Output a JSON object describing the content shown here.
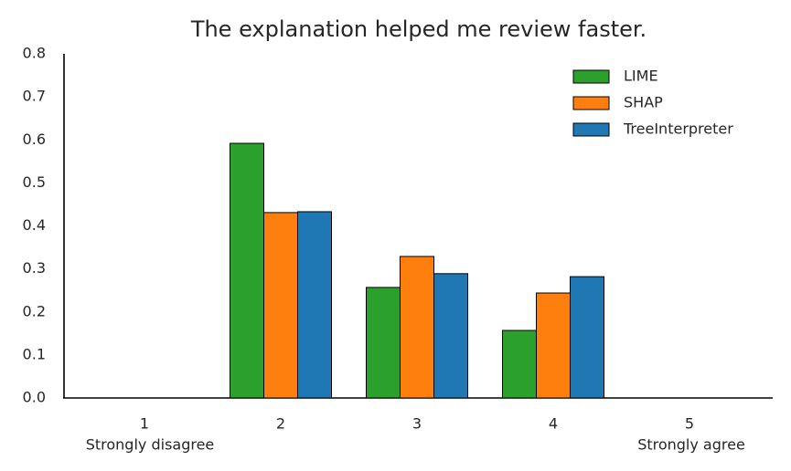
{
  "chart_data": {
    "type": "bar",
    "title": "The explanation helped me review faster.",
    "categories": [
      "1",
      "2",
      "3",
      "4",
      "5"
    ],
    "category_sublabels": [
      "Strongly disagree",
      null,
      null,
      null,
      "Strongly agree"
    ],
    "series": [
      {
        "name": "LIME",
        "color": "#2ca02c",
        "values": [
          0,
          0.592,
          0.257,
          0.157,
          0
        ]
      },
      {
        "name": "SHAP",
        "color": "#ff7f0e",
        "values": [
          0,
          0.431,
          0.329,
          0.244,
          0
        ]
      },
      {
        "name": "TreeInterpreter",
        "color": "#1f77b4",
        "values": [
          0,
          0.433,
          0.289,
          0.282,
          0
        ]
      }
    ],
    "ylim": [
      0,
      0.8
    ],
    "yticks": [
      {
        "value": 0,
        "label": "0.0"
      },
      {
        "value": 0.1,
        "label": "0.1"
      },
      {
        "value": 0.2,
        "label": "0.2"
      },
      {
        "value": 0.3,
        "label": "0.3"
      },
      {
        "value": 0.4,
        "label": "0.4"
      },
      {
        "value": 0.5,
        "label": "0.5"
      },
      {
        "value": 0.6,
        "label": "0.6"
      },
      {
        "value": 0.7,
        "label": "0.7"
      },
      {
        "value": 0.8,
        "label": "0.8"
      }
    ],
    "grid": false,
    "legend": "upper right"
  }
}
